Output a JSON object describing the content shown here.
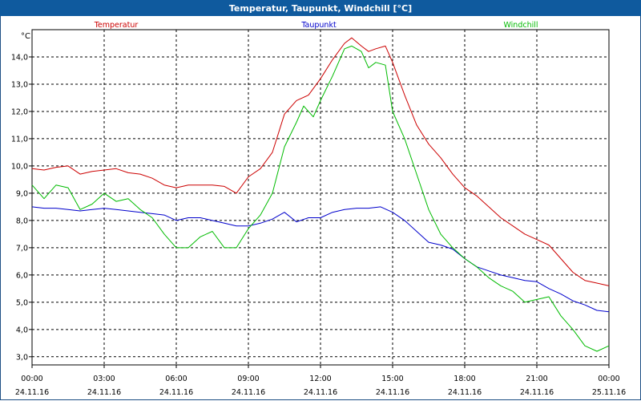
{
  "window": {
    "title": "Temperatur, Taupunkt, Windchill [°C]"
  },
  "chart_data": {
    "type": "line",
    "title": "Temperatur, Taupunkt, Windchill [°C]",
    "ylabel": "°C",
    "ylim": [
      2.7,
      15.0
    ],
    "yticks": [
      "3,0",
      "4,0",
      "5,0",
      "6,0",
      "7,0",
      "8,0",
      "9,0",
      "10,0",
      "11,0",
      "12,0",
      "13,0",
      "14,0"
    ],
    "xlim": [
      0,
      24
    ],
    "xticks": [
      {
        "time": "00:00",
        "date": "24.11.16"
      },
      {
        "time": "03:00",
        "date": "24.11.16"
      },
      {
        "time": "06:00",
        "date": "24.11.16"
      },
      {
        "time": "09:00",
        "date": "24.11.16"
      },
      {
        "time": "12:00",
        "date": "24.11.16"
      },
      {
        "time": "15:00",
        "date": "24.11.16"
      },
      {
        "time": "18:00",
        "date": "24.11.16"
      },
      {
        "time": "21:00",
        "date": "24.11.16"
      },
      {
        "time": "00:00",
        "date": "25.11.16"
      }
    ],
    "grid": true,
    "legend_placement": "top",
    "series": [
      {
        "name": "Temperatur",
        "color": "#cc0000",
        "x": [
          0,
          0.5,
          1,
          1.5,
          2,
          2.5,
          3,
          3.5,
          4,
          4.5,
          5,
          5.5,
          6,
          6.5,
          7,
          7.5,
          8,
          8.5,
          9,
          9.5,
          10,
          10.5,
          11,
          11.5,
          12,
          12.5,
          13,
          13.3,
          13.7,
          14,
          14.3,
          14.7,
          15,
          15.5,
          16,
          16.5,
          17,
          17.5,
          18,
          18.5,
          19,
          19.5,
          20,
          20.5,
          21,
          21.5,
          22,
          22.5,
          23,
          23.5,
          24
        ],
        "y": [
          9.9,
          9.85,
          9.95,
          10.0,
          9.7,
          9.8,
          9.85,
          9.9,
          9.75,
          9.7,
          9.55,
          9.3,
          9.2,
          9.3,
          9.3,
          9.3,
          9.25,
          9.0,
          9.6,
          9.9,
          10.5,
          11.9,
          12.4,
          12.6,
          13.2,
          13.9,
          14.5,
          14.7,
          14.4,
          14.2,
          14.3,
          14.4,
          13.8,
          12.6,
          11.5,
          10.8,
          10.3,
          9.7,
          9.2,
          8.9,
          8.5,
          8.1,
          7.8,
          7.5,
          7.3,
          7.1,
          6.6,
          6.1,
          5.8,
          5.7,
          5.6
        ]
      },
      {
        "name": "Taupunkt",
        "color": "#0000cc",
        "x": [
          0,
          0.5,
          1,
          1.5,
          2,
          2.5,
          3,
          3.5,
          4,
          4.5,
          5,
          5.5,
          6,
          6.5,
          7,
          7.5,
          8,
          8.5,
          9,
          9.5,
          10,
          10.5,
          11,
          11.5,
          12,
          12.5,
          13,
          13.5,
          14,
          14.5,
          15,
          15.5,
          16,
          16.5,
          17,
          17.5,
          18,
          18.5,
          19,
          19.5,
          20,
          20.5,
          21,
          21.5,
          22,
          22.5,
          23,
          23.5,
          24
        ],
        "y": [
          8.5,
          8.45,
          8.45,
          8.4,
          8.35,
          8.4,
          8.45,
          8.4,
          8.35,
          8.3,
          8.25,
          8.2,
          8.0,
          8.1,
          8.1,
          8.0,
          7.9,
          7.8,
          7.8,
          7.9,
          8.05,
          8.3,
          7.95,
          8.1,
          8.1,
          8.3,
          8.4,
          8.45,
          8.45,
          8.5,
          8.3,
          8.0,
          7.6,
          7.2,
          7.1,
          6.95,
          6.6,
          6.3,
          6.15,
          6.0,
          5.9,
          5.8,
          5.75,
          5.5,
          5.3,
          5.05,
          4.9,
          4.7,
          4.65
        ]
      },
      {
        "name": "Windchill",
        "color": "#00bb00",
        "x": [
          0,
          0.5,
          1,
          1.5,
          2,
          2.5,
          3,
          3.5,
          4,
          4.5,
          5,
          5.5,
          6,
          6.5,
          7,
          7.5,
          8,
          8.5,
          9,
          9.5,
          10,
          10.5,
          11,
          11.3,
          11.7,
          12,
          12.5,
          13,
          13.3,
          13.7,
          14,
          14.3,
          14.7,
          15,
          15.5,
          16,
          16.5,
          17,
          17.5,
          18,
          18.5,
          19,
          19.5,
          20,
          20.5,
          21,
          21.5,
          22,
          22.5,
          23,
          23.5,
          24
        ],
        "y": [
          9.3,
          8.8,
          9.3,
          9.2,
          8.4,
          8.6,
          9.0,
          8.7,
          8.8,
          8.4,
          8.1,
          7.5,
          7.0,
          7.0,
          7.4,
          7.6,
          7.0,
          7.0,
          7.7,
          8.2,
          9.0,
          10.7,
          11.6,
          12.2,
          11.8,
          12.4,
          13.3,
          14.3,
          14.4,
          14.2,
          13.6,
          13.8,
          13.7,
          12.0,
          11.0,
          9.7,
          8.4,
          7.5,
          7.0,
          6.6,
          6.3,
          5.9,
          5.6,
          5.4,
          5.0,
          5.1,
          5.2,
          4.5,
          4.0,
          3.4,
          3.2,
          3.4
        ]
      }
    ]
  }
}
